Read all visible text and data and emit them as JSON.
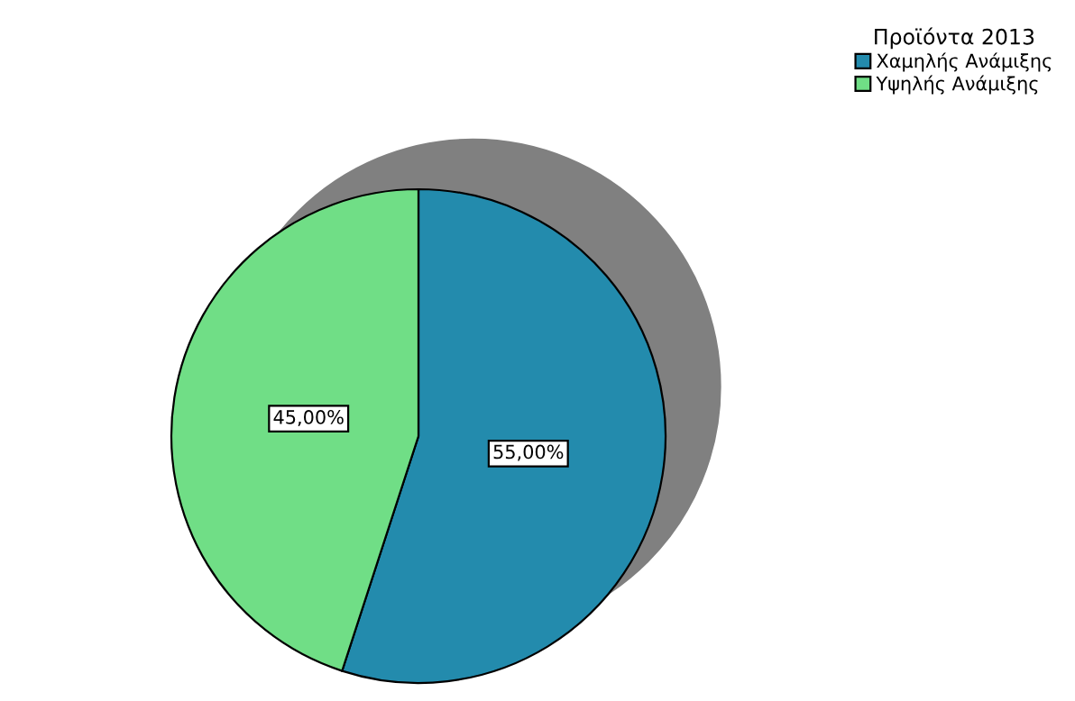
{
  "chart_data": {
    "type": "pie",
    "legend_title": "Προϊόντα 2013",
    "categories": [
      "Χαμηλής Ανάμιξης",
      "Υψηλής Ανάμιξης"
    ],
    "values": [
      55,
      45
    ],
    "colors": [
      "#238bad",
      "#70de86"
    ],
    "value_labels": [
      "55,00%",
      "45,00%"
    ],
    "legend": "top right"
  }
}
